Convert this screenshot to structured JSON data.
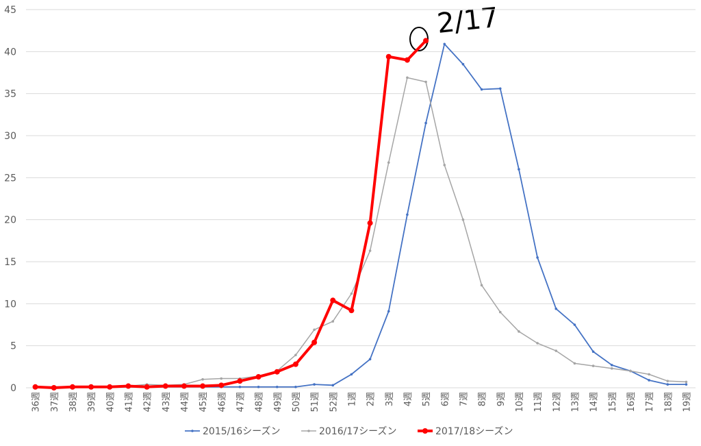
{
  "chart_data": {
    "type": "line",
    "annotation": "2/17",
    "categories": [
      "36週",
      "37週",
      "38週",
      "39週",
      "40週",
      "41週",
      "42週",
      "43週",
      "44週",
      "45週",
      "46週",
      "47週",
      "48週",
      "49週",
      "50週",
      "51週",
      "52週",
      "1週",
      "2週",
      "3週",
      "4週",
      "5週",
      "6週",
      "7週",
      "8週",
      "9週",
      "10週",
      "11週",
      "12週",
      "13週",
      "14週",
      "15週",
      "16週",
      "17週",
      "18週",
      "19週"
    ],
    "series": [
      {
        "name": "2015/16シーズン",
        "color": "#4472c4",
        "values": [
          0.1,
          0.1,
          0.1,
          0.1,
          0.1,
          0.1,
          0.1,
          0.1,
          0.1,
          0.1,
          0.1,
          0.1,
          0.1,
          0.1,
          0.1,
          0.4,
          0.3,
          1.6,
          3.4,
          9.1,
          20.6,
          31.5,
          40.9,
          38.5,
          35.5,
          35.6,
          26.0,
          15.5,
          9.4,
          7.5,
          4.3,
          2.7,
          2.0,
          0.9,
          0.4,
          0.4
        ]
      },
      {
        "name": "2016/17シーズン",
        "color": "#a5a5a5",
        "values": [
          0.1,
          0.1,
          0.1,
          0.1,
          0.1,
          0.2,
          0.4,
          0.3,
          0.4,
          1.0,
          1.1,
          1.1,
          1.4,
          2.0,
          3.9,
          6.9,
          7.9,
          11.2,
          16.3,
          26.8,
          36.9,
          36.4,
          26.5,
          20.0,
          12.2,
          9.0,
          6.7,
          5.3,
          4.4,
          2.9,
          2.6,
          2.3,
          2.0,
          1.6,
          0.8,
          0.7
        ]
      },
      {
        "name": "2017/18シーズン",
        "color": "#ff0000",
        "values": [
          0.1,
          0.0,
          0.1,
          0.1,
          0.1,
          0.2,
          0.1,
          0.2,
          0.2,
          0.2,
          0.3,
          0.8,
          1.3,
          1.9,
          2.8,
          5.4,
          10.4,
          9.2,
          19.6,
          39.4,
          39.0,
          41.3,
          null,
          null,
          null,
          null,
          null,
          null,
          null,
          null,
          null,
          null,
          null,
          null,
          null,
          null
        ]
      }
    ],
    "ylim": [
      0,
      45
    ],
    "yticks": [
      0,
      5,
      10,
      15,
      20,
      25,
      30,
      35,
      40,
      45
    ],
    "grid": true,
    "legend": "bottom"
  }
}
